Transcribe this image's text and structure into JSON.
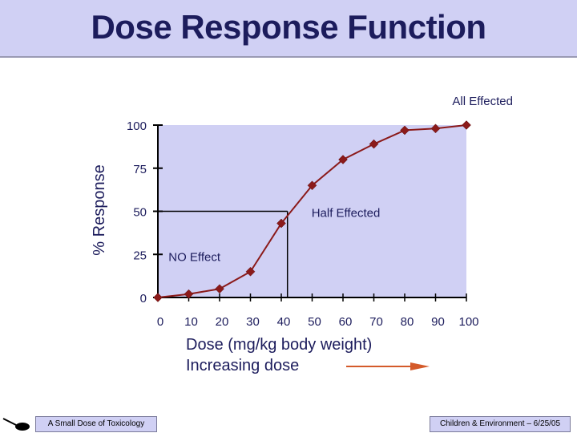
{
  "slide": {
    "title": "Dose Response Function",
    "footer_left": "A Small Dose of Toxicology",
    "footer_right": "Children & Environment – 6/25/05"
  },
  "colors": {
    "title_bg": "#d0d0f4",
    "plot_bg": "#d0d0f4",
    "series": "#8b1a1a",
    "arrow": "#d45a2a",
    "text_dark": "#1c1c5c"
  },
  "chart_data": {
    "type": "line",
    "title": "",
    "xlabel": "Dose (mg/kg body weight)",
    "xlabel_secondary": "Increasing dose",
    "ylabel": "% Response",
    "xlim": [
      0,
      100
    ],
    "ylim": [
      0,
      100
    ],
    "x_ticks": [
      "0",
      "10",
      "20",
      "30",
      "40",
      "50",
      "60",
      "70",
      "80",
      "90",
      "100"
    ],
    "y_ticks": [
      "0",
      "25",
      "50",
      "75",
      "100"
    ],
    "series": [
      {
        "name": "Response",
        "x": [
          0,
          10,
          20,
          30,
          40,
          50,
          60,
          70,
          80,
          90,
          100
        ],
        "y": [
          0,
          2,
          5,
          15,
          43,
          65,
          80,
          89,
          97,
          98,
          100
        ]
      }
    ],
    "annotations": [
      {
        "text": "All Effected",
        "x": 100,
        "y": 100
      },
      {
        "text": "Half Effected",
        "x": 42,
        "y": 50
      },
      {
        "text": "NO Effect",
        "x": 5,
        "y": 25
      }
    ],
    "reference_lines": {
      "half_effect_y": 50,
      "half_effect_x": 42
    }
  }
}
